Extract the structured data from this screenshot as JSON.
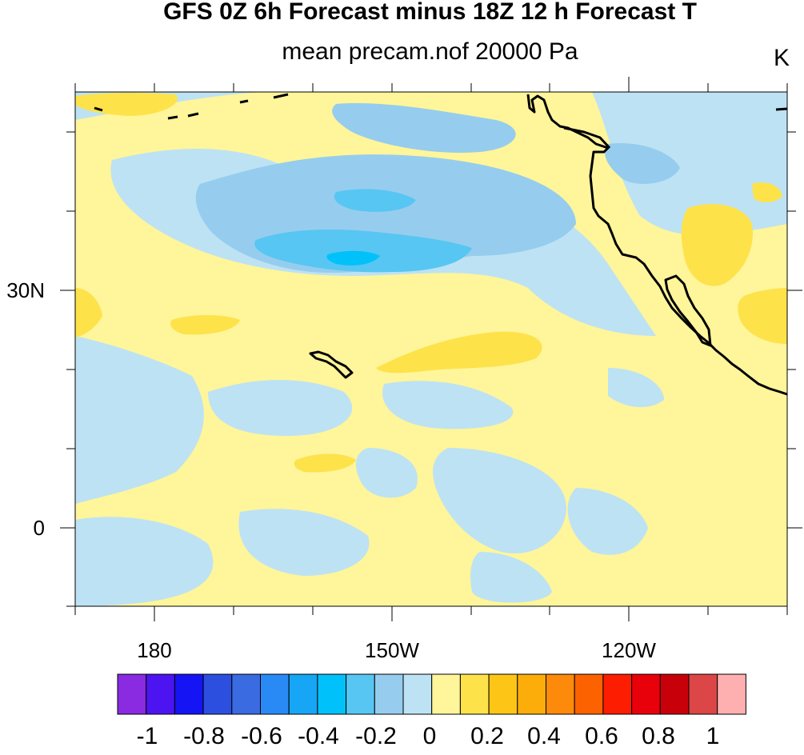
{
  "title": "GFS 0Z 6h Forecast minus 18Z 12 h Forecast T",
  "subtitle": "mean precam.nof 20000 Pa",
  "units": "K",
  "y_axis": {
    "labels": [
      "30N",
      "0"
    ]
  },
  "x_axis": {
    "labels": [
      "180",
      "150W",
      "120W"
    ]
  },
  "colorbar": {
    "labels": [
      "-1",
      "-0.8",
      "-0.6",
      "-0.4",
      "-0.2",
      "0",
      "0.2",
      "0.4",
      "0.6",
      "0.8",
      "1"
    ],
    "colors": [
      "#8a2be2",
      "#4b14f0",
      "#1414f5",
      "#2d4fe0",
      "#3a6be0",
      "#2a8af5",
      "#16a6f5",
      "#00c1fa",
      "#57c6f2",
      "#96cdee",
      "#bde2f4",
      "#fff59a",
      "#fde24a",
      "#fdc515",
      "#fdad0a",
      "#fd8a0a",
      "#fd6200",
      "#fd1d00",
      "#e8000a",
      "#c8000a",
      "#dc4646",
      "#feb0b0"
    ]
  },
  "chart_data": {
    "type": "heatmap",
    "title": "GFS 0Z 6h Forecast minus 18Z 12 h Forecast T",
    "subtitle": "mean precam.nof 20000 Pa",
    "units": "K",
    "x_ticks": [
      "180",
      "150W",
      "120W"
    ],
    "y_ticks": [
      "30N",
      "0"
    ],
    "lon_range": [
      170,
      260
    ],
    "lat_range": [
      -10,
      55
    ],
    "levels": [
      -1,
      -0.9,
      -0.8,
      -0.7,
      -0.6,
      -0.5,
      -0.4,
      -0.3,
      -0.2,
      -0.1,
      0,
      0.1,
      0.2,
      0.3,
      0.4,
      0.5,
      0.6,
      0.7,
      0.8,
      0.9,
      1
    ]
  }
}
